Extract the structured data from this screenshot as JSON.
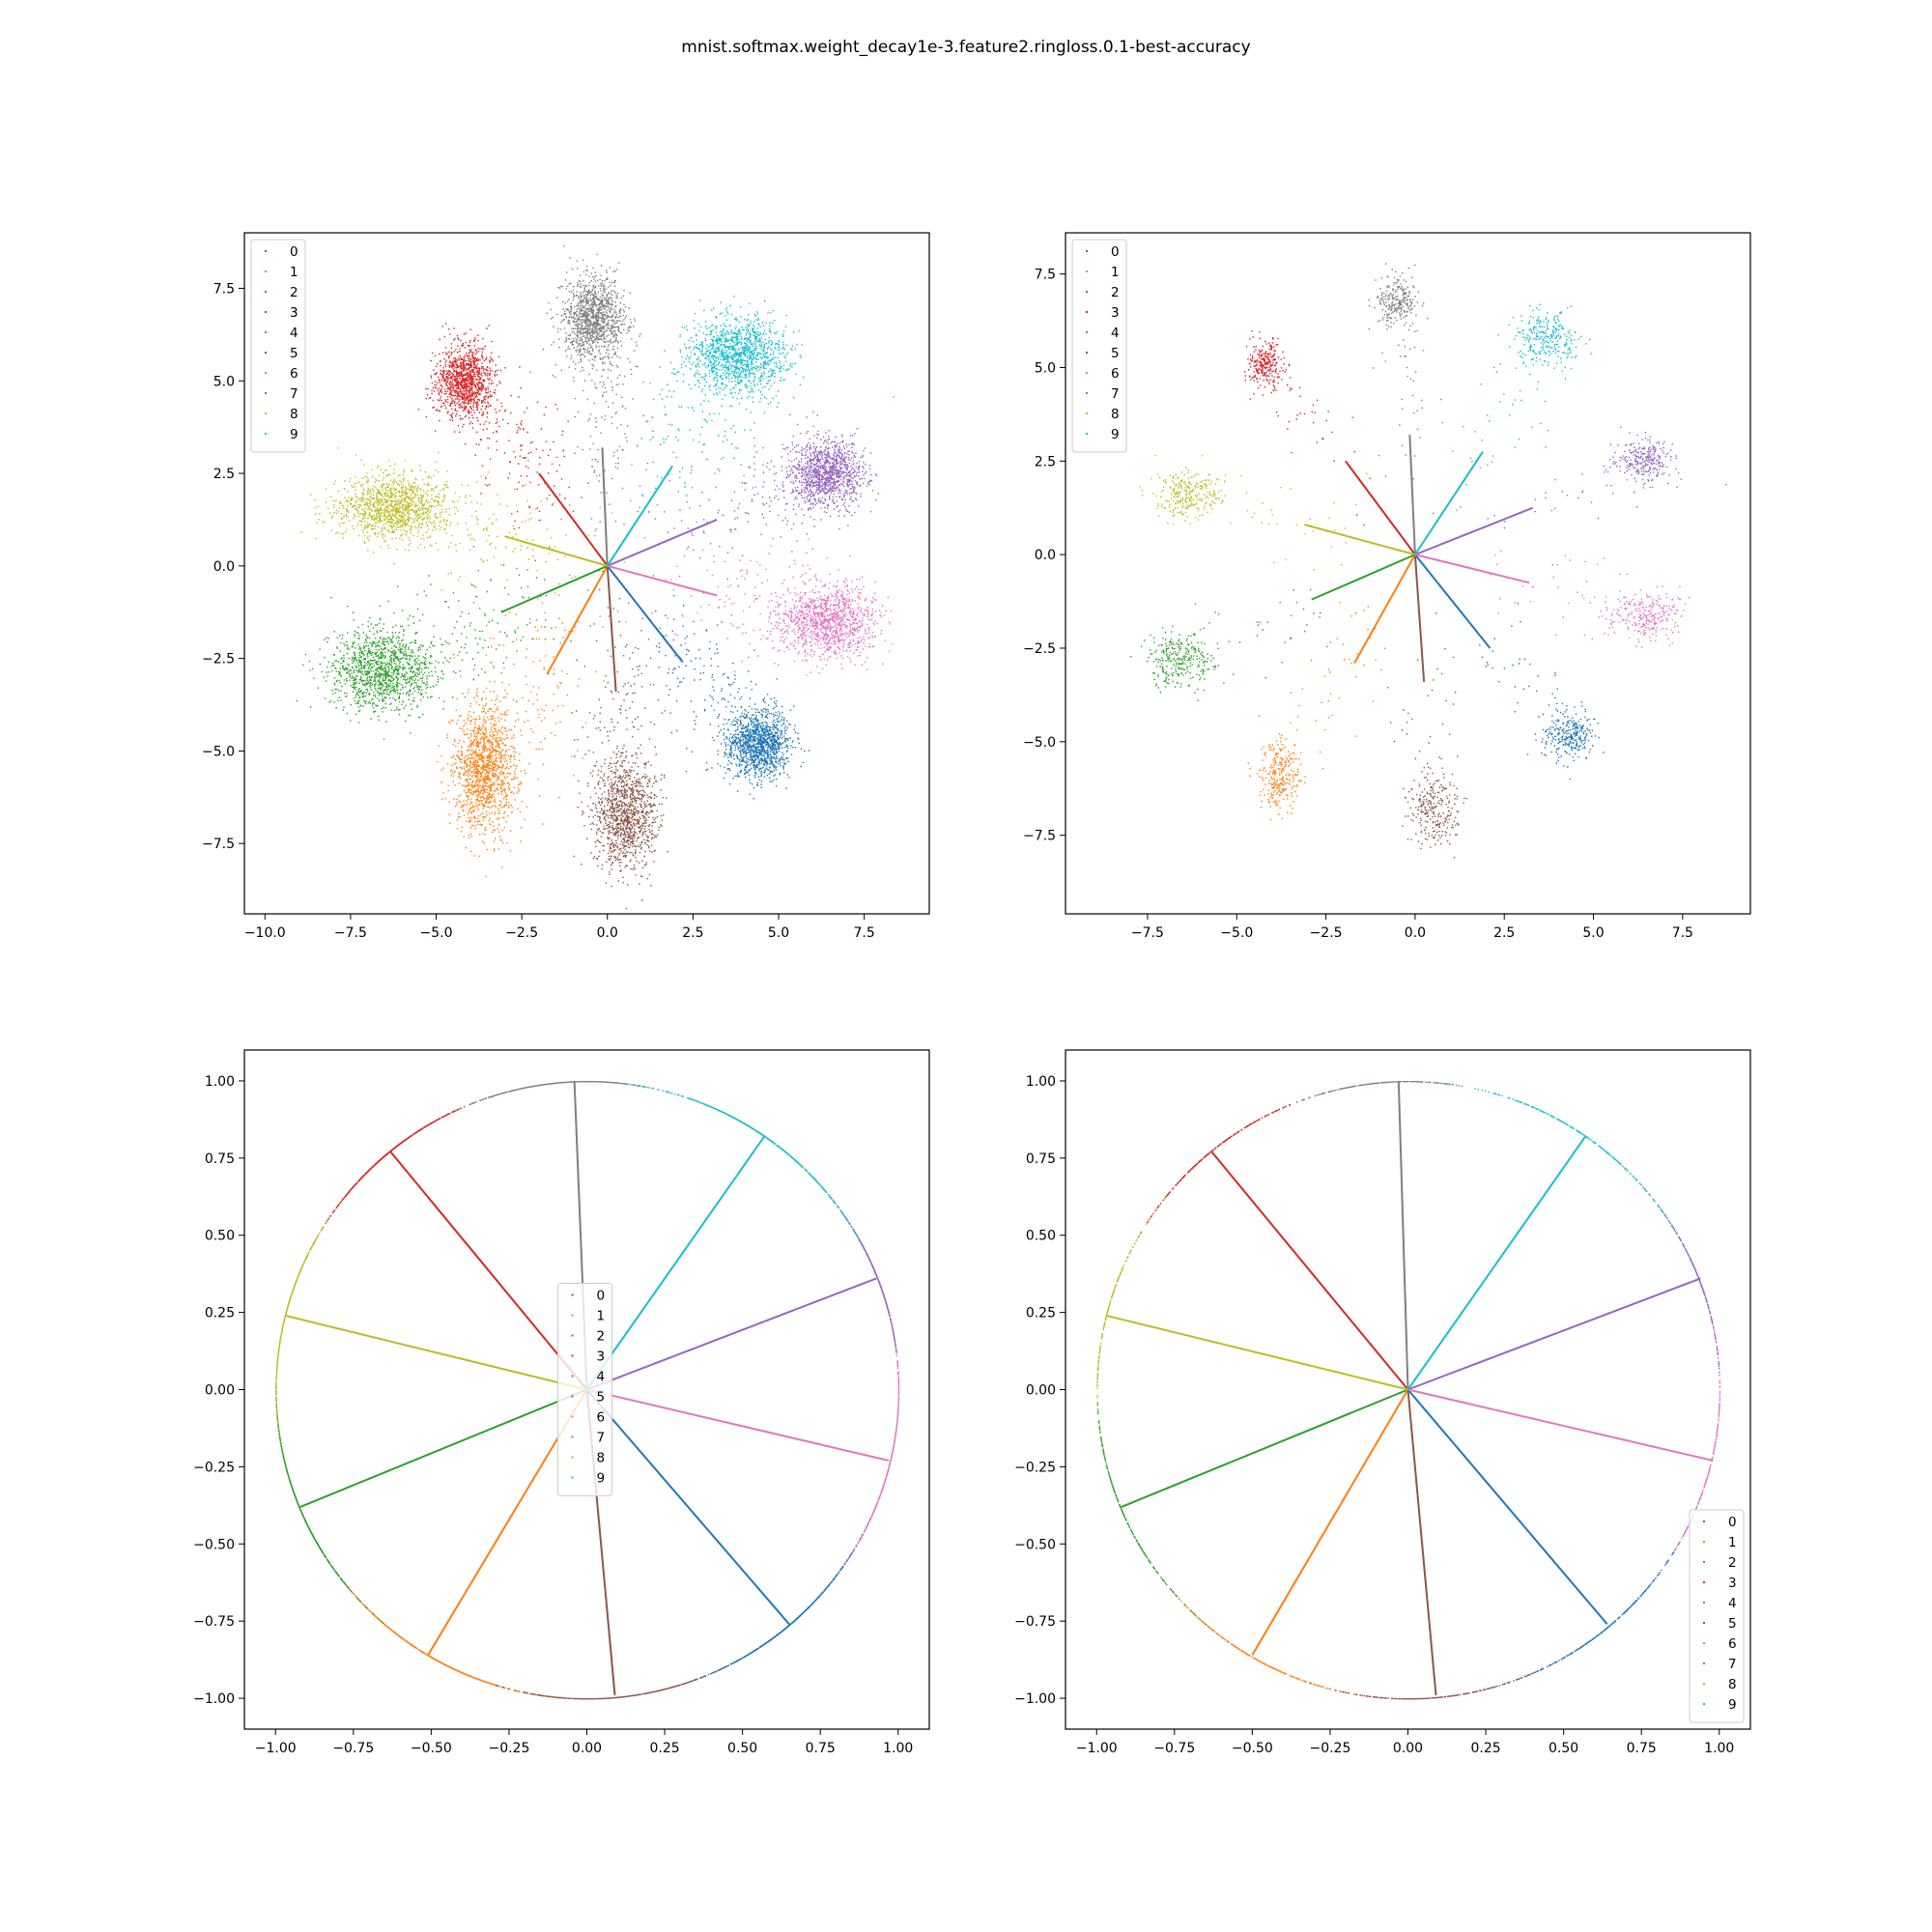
{
  "figure_title": "mnist.softmax.weight_decay1e-3.feature2.ringloss.0.1-best-accuracy",
  "class_colors": [
    "#1f77b4",
    "#ff7f0e",
    "#2ca02c",
    "#d62728",
    "#9467bd",
    "#8c564b",
    "#e377c2",
    "#7f7f7f",
    "#bcbd22",
    "#17becf"
  ],
  "chart_data": [
    {
      "type": "scatter",
      "title": "",
      "xlabel": "",
      "ylabel": "",
      "xlim": [
        -10.6,
        9.4
      ],
      "ylim": [
        -9.4,
        9.0
      ],
      "xticks": [
        -10.0,
        -7.5,
        -5.0,
        -2.5,
        0.0,
        2.5,
        5.0,
        7.5
      ],
      "xtick_labels": [
        "−10.0",
        "−7.5",
        "−5.0",
        "−2.5",
        "0.0",
        "2.5",
        "5.0",
        "7.5"
      ],
      "yticks": [
        -7.5,
        -5.0,
        -2.5,
        0.0,
        2.5,
        5.0,
        7.5
      ],
      "ytick_labels": [
        "−7.5",
        "−5.0",
        "−2.5",
        "0.0",
        "2.5",
        "5.0",
        "7.5"
      ],
      "legend": {
        "placement": "upper-left",
        "entries": [
          "0",
          "1",
          "2",
          "3",
          "4",
          "5",
          "6",
          "7",
          "8",
          "9"
        ]
      },
      "series": [
        {
          "name": "0",
          "center": [
            4.4,
            -4.8
          ],
          "spread": [
            0.45,
            0.45
          ],
          "n": 1400
        },
        {
          "name": "1",
          "center": [
            -3.6,
            -5.5
          ],
          "spread": [
            0.45,
            0.85
          ],
          "n": 1400
        },
        {
          "name": "2",
          "center": [
            -6.6,
            -2.8
          ],
          "spread": [
            0.75,
            0.55
          ],
          "n": 1400
        },
        {
          "name": "3",
          "center": [
            -4.2,
            5.0
          ],
          "spread": [
            0.4,
            0.5
          ],
          "n": 1300
        },
        {
          "name": "4",
          "center": [
            6.4,
            2.5
          ],
          "spread": [
            0.55,
            0.45
          ],
          "n": 1300
        },
        {
          "name": "5",
          "center": [
            0.5,
            -6.7
          ],
          "spread": [
            0.45,
            0.75
          ],
          "n": 1300
        },
        {
          "name": "6",
          "center": [
            6.4,
            -1.5
          ],
          "spread": [
            0.7,
            0.5
          ],
          "n": 1300
        },
        {
          "name": "7",
          "center": [
            -0.4,
            6.7
          ],
          "spread": [
            0.45,
            0.55
          ],
          "n": 1300
        },
        {
          "name": "8",
          "center": [
            -6.3,
            1.6
          ],
          "spread": [
            0.8,
            0.45
          ],
          "n": 1300
        },
        {
          "name": "9",
          "center": [
            3.8,
            5.7
          ],
          "spread": [
            0.7,
            0.5
          ],
          "n": 1400
        }
      ],
      "weight_vectors": [
        [
          2.2,
          -2.6
        ],
        [
          -1.75,
          -2.9
        ],
        [
          -3.1,
          -1.25
        ],
        [
          -2.0,
          2.5
        ],
        [
          3.2,
          1.25
        ],
        [
          0.25,
          -3.4
        ],
        [
          3.2,
          -0.8
        ],
        [
          -0.15,
          3.2
        ],
        [
          -3.0,
          0.8
        ],
        [
          1.9,
          2.7
        ]
      ]
    },
    {
      "type": "scatter",
      "title": "",
      "xlabel": "",
      "ylabel": "",
      "xlim": [
        -9.8,
        9.4
      ],
      "ylim": [
        -9.6,
        8.6
      ],
      "xticks": [
        -7.5,
        -5.0,
        -2.5,
        0.0,
        2.5,
        5.0,
        7.5
      ],
      "xtick_labels": [
        "−7.5",
        "−5.0",
        "−2.5",
        "0.0",
        "2.5",
        "5.0",
        "7.5"
      ],
      "yticks": [
        -7.5,
        -5.0,
        -2.5,
        0.0,
        2.5,
        5.0,
        7.5
      ],
      "ytick_labels": [
        "−7.5",
        "−5.0",
        "−2.5",
        "0.0",
        "2.5",
        "5.0",
        "7.5"
      ],
      "legend": {
        "placement": "upper-left",
        "entries": [
          "0",
          "1",
          "2",
          "3",
          "4",
          "5",
          "6",
          "7",
          "8",
          "9"
        ]
      },
      "series": [
        {
          "name": "0",
          "center": [
            4.3,
            -4.8
          ],
          "spread": [
            0.35,
            0.35
          ],
          "n": 320
        },
        {
          "name": "1",
          "center": [
            -3.8,
            -5.9
          ],
          "spread": [
            0.3,
            0.45
          ],
          "n": 320
        },
        {
          "name": "2",
          "center": [
            -6.6,
            -2.8
          ],
          "spread": [
            0.45,
            0.35
          ],
          "n": 320
        },
        {
          "name": "3",
          "center": [
            -4.2,
            5.1
          ],
          "spread": [
            0.25,
            0.3
          ],
          "n": 300
        },
        {
          "name": "4",
          "center": [
            6.4,
            2.5
          ],
          "spread": [
            0.4,
            0.3
          ],
          "n": 300
        },
        {
          "name": "5",
          "center": [
            0.5,
            -6.8
          ],
          "spread": [
            0.35,
            0.5
          ],
          "n": 300
        },
        {
          "name": "6",
          "center": [
            6.4,
            -1.6
          ],
          "spread": [
            0.5,
            0.35
          ],
          "n": 300
        },
        {
          "name": "7",
          "center": [
            -0.5,
            6.8
          ],
          "spread": [
            0.3,
            0.35
          ],
          "n": 300
        },
        {
          "name": "8",
          "center": [
            -6.4,
            1.6
          ],
          "spread": [
            0.45,
            0.3
          ],
          "n": 300
        },
        {
          "name": "9",
          "center": [
            3.7,
            5.8
          ],
          "spread": [
            0.45,
            0.35
          ],
          "n": 320
        }
      ],
      "weight_vectors": [
        [
          2.1,
          -2.5
        ],
        [
          -1.7,
          -2.9
        ],
        [
          -2.9,
          -1.2
        ],
        [
          -1.95,
          2.5
        ],
        [
          3.3,
          1.25
        ],
        [
          0.25,
          -3.4
        ],
        [
          3.2,
          -0.75
        ],
        [
          -0.15,
          3.2
        ],
        [
          -3.1,
          0.8
        ],
        [
          1.9,
          2.75
        ]
      ]
    },
    {
      "type": "scatter",
      "title": "",
      "xlabel": "",
      "ylabel": "",
      "xlim": [
        -1.1,
        1.1
      ],
      "ylim": [
        -1.1,
        1.1
      ],
      "xticks": [
        -1.0,
        -0.75,
        -0.5,
        -0.25,
        0.0,
        0.25,
        0.5,
        0.75,
        1.0
      ],
      "xtick_labels": [
        "−1.00",
        "−0.75",
        "−0.50",
        "−0.25",
        "0.00",
        "0.25",
        "0.50",
        "0.75",
        "1.00"
      ],
      "yticks": [
        -1.0,
        -0.75,
        -0.5,
        -0.25,
        0.0,
        0.25,
        0.5,
        0.75,
        1.0
      ],
      "ytick_labels": [
        "−1.00",
        "−0.75",
        "−0.50",
        "−0.25",
        "0.00",
        "0.25",
        "0.50",
        "0.75",
        "1.00"
      ],
      "legend": {
        "placement": "center",
        "entries": [
          "0",
          "1",
          "2",
          "3",
          "4",
          "5",
          "6",
          "7",
          "8",
          "9"
        ]
      },
      "series": [
        {
          "name": "0",
          "angle_deg": -49.0,
          "angle_spread": 9,
          "n": 700
        },
        {
          "name": "1",
          "angle_deg": -120.5,
          "angle_spread": 9,
          "n": 700
        },
        {
          "name": "2",
          "angle_deg": -157.5,
          "angle_spread": 9,
          "n": 700
        },
        {
          "name": "3",
          "angle_deg": 129.5,
          "angle_spread": 7,
          "n": 650
        },
        {
          "name": "4",
          "angle_deg": 21.0,
          "angle_spread": 7,
          "n": 650
        },
        {
          "name": "5",
          "angle_deg": -84.5,
          "angle_spread": 8,
          "n": 650
        },
        {
          "name": "6",
          "angle_deg": -13.5,
          "angle_spread": 8,
          "n": 650
        },
        {
          "name": "7",
          "angle_deg": 95.5,
          "angle_spread": 7,
          "n": 650
        },
        {
          "name": "8",
          "angle_deg": 165.5,
          "angle_spread": 8,
          "n": 650
        },
        {
          "name": "9",
          "angle_deg": 55.5,
          "angle_spread": 10,
          "n": 700
        }
      ],
      "weight_vectors": [
        [
          0.65,
          -0.76
        ],
        [
          -0.51,
          -0.86
        ],
        [
          -0.92,
          -0.38
        ],
        [
          -0.63,
          0.77
        ],
        [
          0.93,
          0.36
        ],
        [
          0.09,
          -0.99
        ],
        [
          0.97,
          -0.23
        ],
        [
          -0.04,
          1.0
        ],
        [
          -0.97,
          0.24
        ],
        [
          0.57,
          0.82
        ]
      ]
    },
    {
      "type": "scatter",
      "title": "",
      "xlabel": "",
      "ylabel": "",
      "xlim": [
        -1.1,
        1.1
      ],
      "ylim": [
        -1.1,
        1.1
      ],
      "xticks": [
        -1.0,
        -0.75,
        -0.5,
        -0.25,
        0.0,
        0.25,
        0.5,
        0.75,
        1.0
      ],
      "xtick_labels": [
        "−1.00",
        "−0.75",
        "−0.50",
        "−0.25",
        "0.00",
        "0.25",
        "0.50",
        "0.75",
        "1.00"
      ],
      "yticks": [
        -1.0,
        -0.75,
        -0.5,
        -0.25,
        0.0,
        0.25,
        0.5,
        0.75,
        1.0
      ],
      "ytick_labels": [
        "−1.00",
        "−0.75",
        "−0.50",
        "−0.25",
        "0.00",
        "0.25",
        "0.50",
        "0.75",
        "1.00"
      ],
      "legend": {
        "placement": "lower-right",
        "entries": [
          "0",
          "1",
          "2",
          "3",
          "4",
          "5",
          "6",
          "7",
          "8",
          "9"
        ]
      },
      "series": [
        {
          "name": "0",
          "angle_deg": -49.0,
          "angle_spread": 10,
          "n": 260
        },
        {
          "name": "1",
          "angle_deg": -120.5,
          "angle_spread": 10,
          "n": 260
        },
        {
          "name": "2",
          "angle_deg": -157.5,
          "angle_spread": 10,
          "n": 260
        },
        {
          "name": "3",
          "angle_deg": 129.5,
          "angle_spread": 8,
          "n": 240
        },
        {
          "name": "4",
          "angle_deg": 21.0,
          "angle_spread": 8,
          "n": 240
        },
        {
          "name": "5",
          "angle_deg": -84.5,
          "angle_spread": 9,
          "n": 240
        },
        {
          "name": "6",
          "angle_deg": -13.5,
          "angle_spread": 9,
          "n": 240
        },
        {
          "name": "7",
          "angle_deg": 95.5,
          "angle_spread": 8,
          "n": 240
        },
        {
          "name": "8",
          "angle_deg": 165.5,
          "angle_spread": 9,
          "n": 240
        },
        {
          "name": "9",
          "angle_deg": 55.5,
          "angle_spread": 11,
          "n": 260
        }
      ],
      "weight_vectors": [
        [
          0.64,
          -0.76
        ],
        [
          -0.5,
          -0.86
        ],
        [
          -0.92,
          -0.38
        ],
        [
          -0.63,
          0.77
        ],
        [
          0.94,
          0.36
        ],
        [
          0.09,
          -0.99
        ],
        [
          0.98,
          -0.23
        ],
        [
          -0.03,
          1.0
        ],
        [
          -0.97,
          0.24
        ],
        [
          0.57,
          0.82
        ]
      ]
    }
  ]
}
